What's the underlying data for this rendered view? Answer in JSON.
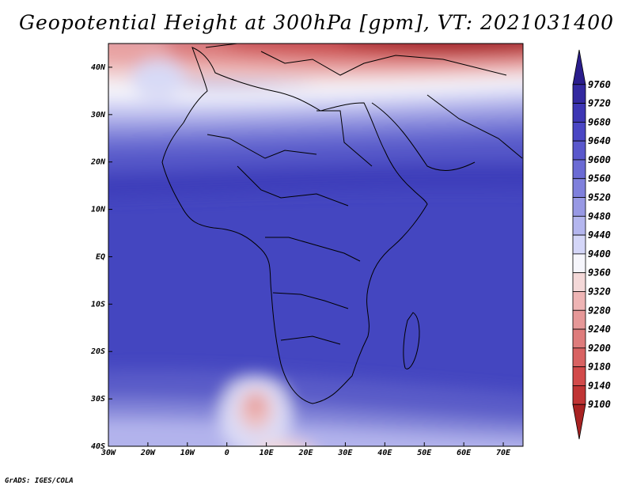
{
  "title": "Geopotential Height at 300hPa [gpm], VT: 2021031400",
  "credit": "GrADS: IGES/COLA",
  "map": {
    "lon_range": [
      -30,
      75
    ],
    "lat_range": [
      -40,
      45
    ],
    "xticks": [
      {
        "lon": -30,
        "label": "30W"
      },
      {
        "lon": -20,
        "label": "20W"
      },
      {
        "lon": -10,
        "label": "10W"
      },
      {
        "lon": 0,
        "label": "0"
      },
      {
        "lon": 10,
        "label": "10E"
      },
      {
        "lon": 20,
        "label": "20E"
      },
      {
        "lon": 30,
        "label": "30E"
      },
      {
        "lon": 40,
        "label": "40E"
      },
      {
        "lon": 50,
        "label": "50E"
      },
      {
        "lon": 60,
        "label": "60E"
      },
      {
        "lon": 70,
        "label": "70E"
      }
    ],
    "yticks": [
      {
        "lat": 40,
        "label": "40N"
      },
      {
        "lat": 30,
        "label": "30N"
      },
      {
        "lat": 20,
        "label": "20N"
      },
      {
        "lat": 10,
        "label": "10N"
      },
      {
        "lat": 0,
        "label": "EQ"
      },
      {
        "lat": -10,
        "label": "10S"
      },
      {
        "lat": -20,
        "label": "20S"
      },
      {
        "lat": -30,
        "label": "30S"
      },
      {
        "lat": -40,
        "label": "40S"
      }
    ]
  },
  "colorbar": {
    "labels": [
      "9760",
      "9720",
      "9680",
      "9640",
      "9600",
      "9560",
      "9520",
      "9480",
      "9440",
      "9400",
      "9360",
      "9320",
      "9280",
      "9240",
      "9200",
      "9180",
      "9140",
      "9100"
    ],
    "colors": [
      "#2a1d8c",
      "#3329a0",
      "#3d36b4",
      "#4a46c4",
      "#5a58cc",
      "#6b6bd4",
      "#7f80dc",
      "#9899e4",
      "#b4b6ee",
      "#d4d6f8",
      "#f6f6fc",
      "#f4d8d8",
      "#eeb4b4",
      "#e69898",
      "#de7c7c",
      "#d86262",
      "#d24a4a",
      "#c03434",
      "#a82222"
    ]
  }
}
